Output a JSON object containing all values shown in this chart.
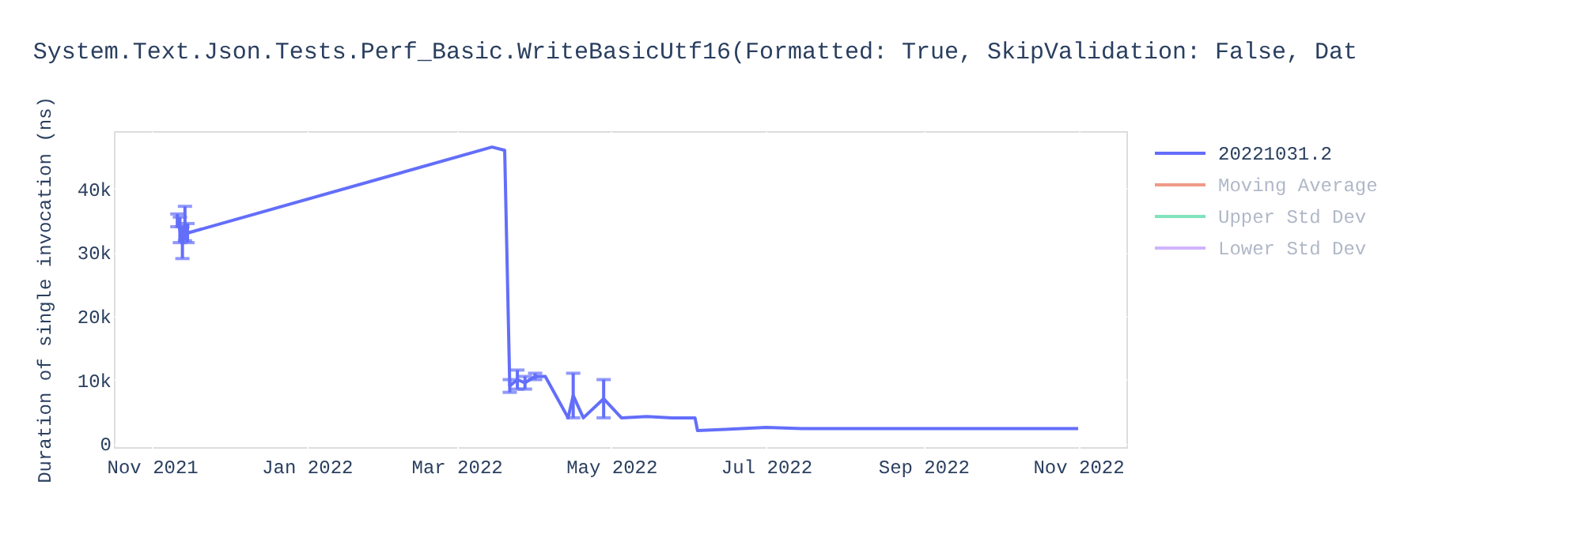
{
  "chart_data": {
    "type": "line",
    "title": "System.Text.Json.Tests.Perf_Basic.WriteBasicUtf16(Formatted: True, SkipValidation: False, Dat",
    "ylabel": "Duration of single invocation (ns)",
    "x": [
      "2021-11-11",
      "2021-11-12",
      "2021-11-13",
      "2021-11-14",
      "2021-11-15",
      "2022-03-15",
      "2022-03-20",
      "2022-03-22",
      "2022-03-25",
      "2022-03-28",
      "2022-04-01",
      "2022-04-05",
      "2022-04-14",
      "2022-04-16",
      "2022-04-20",
      "2022-04-28",
      "2022-05-05",
      "2022-05-15",
      "2022-05-25",
      "2022-06-03",
      "2022-06-04",
      "2022-06-15",
      "2022-07-01",
      "2022-07-15",
      "2022-08-15",
      "2022-09-15",
      "2022-10-15",
      "2022-11-01"
    ],
    "series": [
      {
        "name": "20221031.2",
        "color": "#636efa",
        "values": [
          35000,
          33500,
          31500,
          34500,
          33000,
          46500,
          46000,
          9000,
          10000,
          9500,
          10500,
          10500,
          4000,
          7500,
          4000,
          7000,
          4000,
          4200,
          4000,
          4000,
          2000,
          2200,
          2500,
          2300,
          2300,
          2300,
          2300,
          2300
        ],
        "errors": [
          1000,
          2000,
          2500,
          2700,
          1500,
          null,
          null,
          1000,
          1500,
          1000,
          500,
          null,
          null,
          [
            4000,
            11000
          ],
          null,
          [
            4000,
            10000
          ],
          null,
          null,
          null,
          null,
          null,
          null,
          null,
          null,
          null,
          null,
          null,
          null
        ]
      },
      {
        "name": "Moving Average",
        "color": "#ef9a87",
        "values": [
          null,
          null,
          null,
          null,
          null,
          null,
          null,
          null,
          null,
          null,
          null,
          null,
          null,
          null,
          null,
          null,
          null,
          null,
          null,
          null,
          null,
          null,
          null,
          null,
          null,
          null,
          null,
          null
        ]
      },
      {
        "name": "Upper Std Dev",
        "color": "#7fe3bc",
        "values": [
          null,
          null,
          null,
          null,
          null,
          null,
          null,
          null,
          null,
          null,
          null,
          null,
          null,
          null,
          null,
          null,
          null,
          null,
          null,
          null,
          null,
          null,
          null,
          null,
          null,
          null,
          null,
          null
        ]
      },
      {
        "name": "Lower Std Dev",
        "color": "#cfb4fd",
        "values": [
          null,
          null,
          null,
          null,
          null,
          null,
          null,
          null,
          null,
          null,
          null,
          null,
          null,
          null,
          null,
          null,
          null,
          null,
          null,
          null,
          null,
          null,
          null,
          null,
          null,
          null,
          null,
          null
        ]
      }
    ],
    "xlim": [
      "2021-10-17",
      "2022-11-20"
    ],
    "xticks": [
      {
        "value": "2021-11-01",
        "label": "Nov 2021"
      },
      {
        "value": "2022-01-01",
        "label": "Jan 2022"
      },
      {
        "value": "2022-03-01",
        "label": "Mar 2022"
      },
      {
        "value": "2022-05-01",
        "label": "May 2022"
      },
      {
        "value": "2022-07-01",
        "label": "Jul 2022"
      },
      {
        "value": "2022-09-01",
        "label": "Sep 2022"
      },
      {
        "value": "2022-11-01",
        "label": "Nov 2022"
      }
    ],
    "ylim": [
      -600,
      49000
    ],
    "yticks": [
      0,
      {
        "value": 10000,
        "label": "10k"
      },
      {
        "value": 20000,
        "label": "20k"
      },
      {
        "value": 30000,
        "label": "30k"
      },
      {
        "value": 40000,
        "label": "40k"
      }
    ],
    "grid": true,
    "legend": "top right",
    "marker": "none",
    "line_style": "solid"
  }
}
